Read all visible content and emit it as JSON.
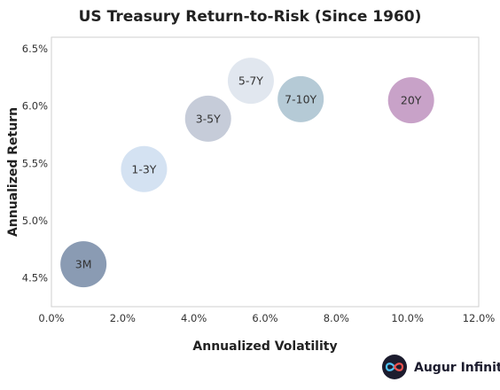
{
  "chart_data": {
    "type": "scatter",
    "title": "US Treasury Return-to-Risk (Since 1960)",
    "xlabel": "Annualized Volatility",
    "ylabel": "Annualized Return",
    "xlim": [
      0,
      12
    ],
    "ylim": [
      4.25,
      6.6
    ],
    "x_ticks": [
      "0.0%",
      "2.0%",
      "4.0%",
      "6.0%",
      "8.0%",
      "10.0%",
      "12.0%"
    ],
    "x_tick_values": [
      0,
      2,
      4,
      6,
      8,
      10,
      12
    ],
    "y_ticks": [
      "4.5%",
      "5.0%",
      "5.5%",
      "6.0%",
      "6.5%"
    ],
    "y_tick_values": [
      4.5,
      5.0,
      5.5,
      6.0,
      6.5
    ],
    "grid": false,
    "points": [
      {
        "label": "3M",
        "x": 0.9,
        "y": 4.62,
        "color": "#8a9bb3"
      },
      {
        "label": "1-3Y",
        "x": 2.6,
        "y": 5.45,
        "color": "#d4e2f2"
      },
      {
        "label": "3-5Y",
        "x": 4.4,
        "y": 5.89,
        "color": "#c6ccd9"
      },
      {
        "label": "5-7Y",
        "x": 5.6,
        "y": 6.22,
        "color": "#e1e7ef"
      },
      {
        "label": "7-10Y",
        "x": 7.0,
        "y": 6.06,
        "color": "#b5cad6"
      },
      {
        "label": "20Y",
        "x": 10.1,
        "y": 6.05,
        "color": "#c8a2c8"
      }
    ]
  },
  "brand": {
    "name": "Augur Infinity",
    "icon": "infinity-logo-icon",
    "icon_bg": "#1c1c2e",
    "icon_colors": [
      "#4fc3f7",
      "#ef5350"
    ]
  }
}
